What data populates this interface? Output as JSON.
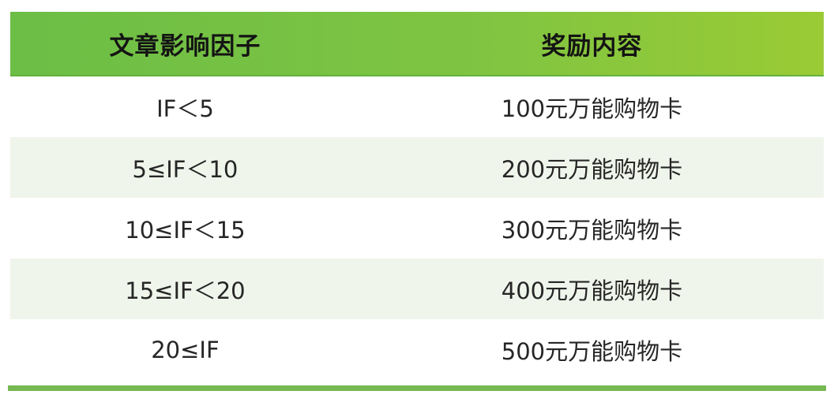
{
  "table": {
    "headers": {
      "impact_factor": "文章影响因子",
      "reward": "奖励内容"
    },
    "rows": [
      {
        "if_range": "IF＜5",
        "reward": "100元万能购物卡"
      },
      {
        "if_range": "5≤IF＜10",
        "reward": "200元万能购物卡"
      },
      {
        "if_range": "10≤IF＜15",
        "reward": "300元万能购物卡"
      },
      {
        "if_range": "15≤IF＜20",
        "reward": "400元万能购物卡"
      },
      {
        "if_range": "20≤IF",
        "reward": "500元万能购物卡"
      }
    ]
  },
  "colors": {
    "header_gradient_left": "#6cbe46",
    "header_gradient_right": "#9acb35",
    "row_alt_background": "#f0f5eb",
    "row_background": "#ffffff",
    "bottom_bar": "#76b851",
    "header_text": "#141414",
    "body_text": "#262626"
  }
}
